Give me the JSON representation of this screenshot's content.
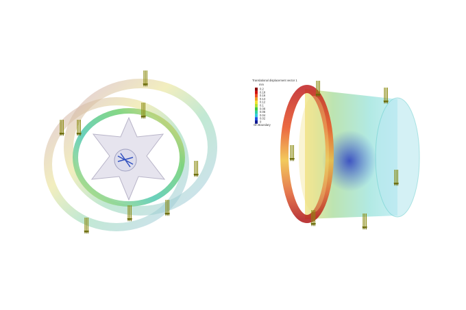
{
  "legend": {
    "title": "Translational displacement vector 1",
    "unit": "mm",
    "labels": [
      "0.2",
      "0.18",
      "0.16",
      "0.14",
      "0.12",
      "0.1",
      "0.08",
      "0.06",
      "0.04",
      "0.02",
      "0"
    ],
    "footer": "On Boundary"
  }
}
